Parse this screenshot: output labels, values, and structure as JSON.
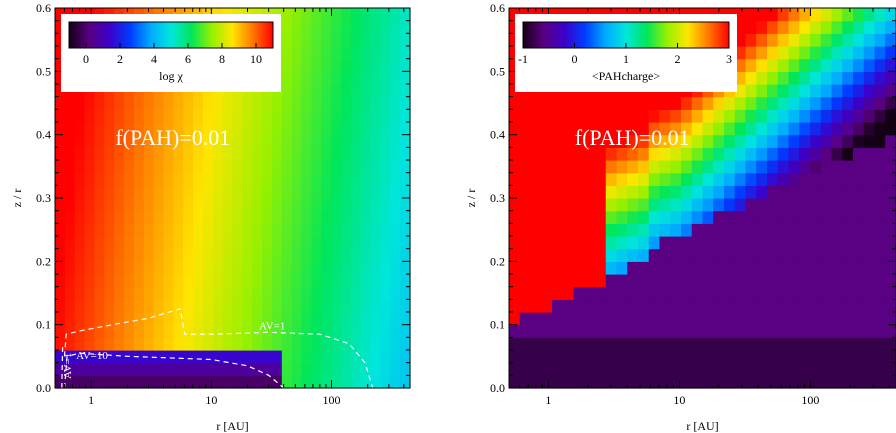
{
  "chart_data": [
    {
      "type": "heatmap",
      "title": "",
      "xlabel": "r [AU]",
      "ylabel": "z / r",
      "xscale": "log",
      "xlim": [
        0.5,
        450
      ],
      "ylim": [
        0.0,
        0.6
      ],
      "xticks": [
        {
          "v": 1,
          "label": "1"
        },
        {
          "v": 10,
          "label": "10"
        },
        {
          "v": 100,
          "label": "100"
        }
      ],
      "yticks": [
        {
          "v": 0.0,
          "label": "0.0"
        },
        {
          "v": 0.1,
          "label": "0.1"
        },
        {
          "v": 0.2,
          "label": "0.2"
        },
        {
          "v": 0.3,
          "label": "0.3"
        },
        {
          "v": 0.4,
          "label": "0.4"
        },
        {
          "v": 0.5,
          "label": "0.5"
        },
        {
          "v": 0.6,
          "label": "0.6"
        }
      ],
      "annotation": "f(PAH)=0.01",
      "colorbar": {
        "label": "log χ",
        "range": [
          -1,
          11
        ],
        "ticks": [
          "0",
          "2",
          "4",
          "6",
          "8",
          "10"
        ],
        "tick_values": [
          0,
          2,
          4,
          6,
          8,
          10
        ]
      },
      "contours": [
        {
          "label": "AV=1",
          "points": [
            [
              0.6,
              0.05
            ],
            [
              0.62,
              0.085
            ],
            [
              0.8,
              0.09
            ],
            [
              1.5,
              0.1
            ],
            [
              3,
              0.11
            ],
            [
              5.5,
              0.125
            ],
            [
              6,
              0.085
            ],
            [
              10,
              0.085
            ],
            [
              30,
              0.088
            ],
            [
              80,
              0.085
            ],
            [
              140,
              0.07
            ],
            [
              190,
              0.04
            ],
            [
              220,
              0.0
            ]
          ]
        },
        {
          "label": "AV=10",
          "points": [
            [
              0.6,
              0.0
            ],
            [
              0.63,
              0.05
            ],
            [
              0.8,
              0.055
            ],
            [
              2,
              0.05
            ],
            [
              10,
              0.045
            ],
            [
              20,
              0.035
            ],
            [
              30,
              0.02
            ],
            [
              40,
              0.0
            ]
          ]
        },
        {
          "label": "AV=1",
          "points": [
            [
              0.57,
              0.0
            ],
            [
              0.58,
              0.07
            ]
          ]
        }
      ]
    },
    {
      "type": "heatmap",
      "title": "",
      "xlabel": "r [AU]",
      "ylabel": "z / r",
      "xscale": "log",
      "xlim": [
        0.5,
        450
      ],
      "ylim": [
        0.0,
        0.6
      ],
      "xticks": [
        {
          "v": 1,
          "label": "1"
        },
        {
          "v": 10,
          "label": "10"
        },
        {
          "v": 100,
          "label": "100"
        }
      ],
      "yticks": [
        {
          "v": 0.0,
          "label": "0.0"
        },
        {
          "v": 0.1,
          "label": "0.1"
        },
        {
          "v": 0.2,
          "label": "0.2"
        },
        {
          "v": 0.3,
          "label": "0.3"
        },
        {
          "v": 0.4,
          "label": "0.4"
        },
        {
          "v": 0.5,
          "label": "0.5"
        },
        {
          "v": 0.6,
          "label": "0.6"
        }
      ],
      "annotation": "f(PAH)=0.01",
      "colorbar": {
        "label": "<PAHcharge>",
        "range": [
          -1,
          3
        ],
        "ticks": [
          "-1",
          "0",
          "1",
          "2",
          "3"
        ],
        "tick_values": [
          -1,
          0,
          1,
          2,
          3
        ]
      }
    }
  ]
}
